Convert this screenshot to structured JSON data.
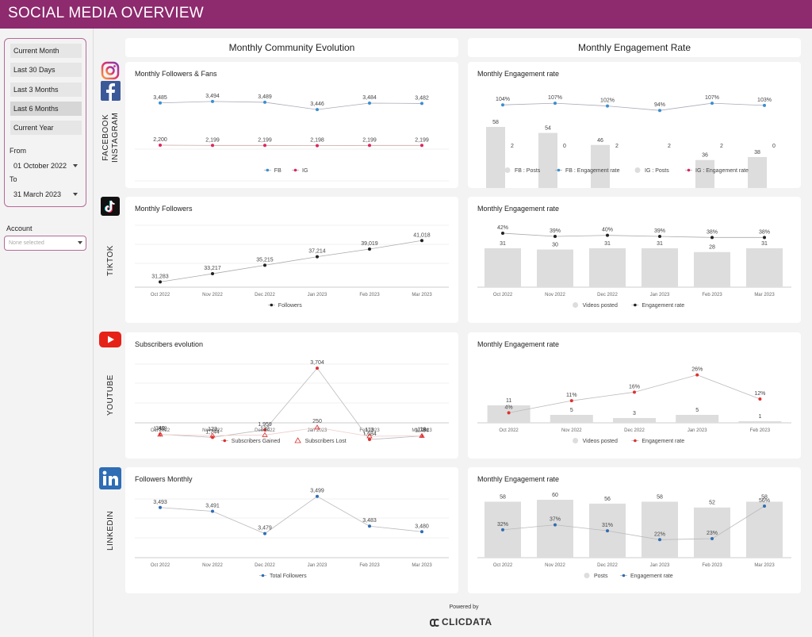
{
  "header": {
    "title": "SOCIAL MEDIA OVERVIEW"
  },
  "filters": {
    "periods": [
      {
        "label": "Current Month",
        "active": false
      },
      {
        "label": "Last 30 Days",
        "active": false
      },
      {
        "label": "Last 3 Months",
        "active": false
      },
      {
        "label": "Last 6 Months",
        "active": true
      },
      {
        "label": "Current Year",
        "active": false
      }
    ],
    "from_label": "From",
    "from_value": "01 October 2022",
    "to_label": "To",
    "to_value": "31 March 2023",
    "account_label": "Account",
    "account_placeholder": "None selected"
  },
  "columns": {
    "left": "Monthly Community Evolution",
    "right": "Monthly Engagement Rate"
  },
  "sections": {
    "fbig": "FACEBOOK\nINSTAGRAM",
    "tiktok": "TIKTOK",
    "youtube": "YOUTUBE",
    "linkedin": "LINKEDIN"
  },
  "colors": {
    "header": "#8e2a6e",
    "fb": "#3b8ed0",
    "ig": "#e0245e",
    "dark": "#222222",
    "red": "#e03030",
    "bar": "#dddddd",
    "li": "#2f6db5"
  },
  "footer": {
    "powered": "Powered by",
    "brand": "CLICDATA"
  },
  "chart_data": [
    {
      "id": "fbig-followers",
      "type": "line",
      "title": "Monthly Followers & Fans",
      "categories": [
        "Oct 2022",
        "Nov 2022",
        "Dec 2022",
        "Jan 2023",
        "Feb 2023",
        "Mar 2023"
      ],
      "series": [
        {
          "name": "FB",
          "values": [
            3485,
            3494,
            3489,
            3446,
            3484,
            3482
          ],
          "labels": [
            "3,485",
            "3,494",
            "3,489",
            "3,446",
            "3,484",
            "3,482"
          ]
        },
        {
          "name": "IG",
          "values": [
            2200,
            2199,
            2199,
            2198,
            2199,
            2199
          ],
          "labels": [
            "2,200",
            "2,199",
            "2,199",
            "2,198",
            "2,199",
            "2,199"
          ]
        }
      ]
    },
    {
      "id": "fbig-engagement",
      "type": "bar",
      "title": "Monthly Engagement rate",
      "categories": [
        "Oct 2022",
        "Nov 2022",
        "Dec 2022",
        "Jan 2023",
        "Feb 2023",
        "Mar 2023"
      ],
      "series": [
        {
          "name": "FB : Posts",
          "values": [
            58,
            54,
            46,
            6,
            36,
            38
          ]
        },
        {
          "name": "FB : Engagement rate",
          "values": [
            104,
            107,
            102,
            94,
            107,
            103
          ],
          "labels": [
            "104%",
            "107%",
            "102%",
            "94%",
            "107%",
            "103%"
          ]
        },
        {
          "name": "IG : Posts",
          "values": [
            2,
            0,
            2,
            2,
            2,
            0
          ]
        },
        {
          "name": "IG : Engagement rate",
          "values": [
            4,
            0,
            4,
            4,
            4,
            0
          ],
          "labels": [
            "4%",
            "0%",
            "4%",
            "4%",
            "4%",
            "0%"
          ]
        }
      ]
    },
    {
      "id": "tiktok-followers",
      "type": "line",
      "title": "Monthly Followers",
      "categories": [
        "Oct 2022",
        "Nov 2022",
        "Dec 2022",
        "Jan 2023",
        "Feb 2023",
        "Mar 2023"
      ],
      "series": [
        {
          "name": "Followers",
          "values": [
            31283,
            33217,
            35215,
            37214,
            39019,
            41018
          ],
          "labels": [
            "31,283",
            "33,217",
            "35,215",
            "37,214",
            "39,019",
            "41,018"
          ]
        }
      ]
    },
    {
      "id": "tiktok-engagement",
      "type": "bar",
      "title": "Monthly Engagement rate",
      "categories": [
        "Oct 2022",
        "Nov 2022",
        "Dec 2022",
        "Jan 2023",
        "Feb 2023",
        "Mar 2023"
      ],
      "series": [
        {
          "name": "Videos posted",
          "values": [
            31,
            30,
            31,
            31,
            28,
            31
          ]
        },
        {
          "name": "Engagement rate",
          "values": [
            42,
            39,
            40,
            39,
            38,
            38
          ],
          "labels": [
            "42%",
            "39%",
            "40%",
            "39%",
            "38%",
            "38%"
          ]
        }
      ]
    },
    {
      "id": "youtube-subscribers",
      "type": "line",
      "title": "Subscribers evolution",
      "categories": [
        "Oct 2022",
        "Nov 2022",
        "Dec 2022",
        "Jan 2023",
        "Feb 2023",
        "Mar 2023"
      ],
      "series": [
        {
          "name": "Subscribers Gained",
          "values": [
            1832,
            1744,
            1959,
            3704,
            1684,
            1784
          ],
          "labels": [
            "1,832",
            "1,744",
            "1,959",
            "3,704",
            "1,684",
            "1,784"
          ]
        },
        {
          "name": "Subscribers Lost",
          "values": [
            140,
            123,
            132,
            250,
            113,
            119
          ],
          "labels": [
            "140",
            "123",
            "132",
            "250",
            "113",
            "119"
          ]
        }
      ]
    },
    {
      "id": "youtube-engagement",
      "type": "bar",
      "title": "Monthly Engagement rate",
      "categories": [
        "Oct 2022",
        "Nov 2022",
        "Dec 2022",
        "Jan 2023",
        "Feb 2023"
      ],
      "series": [
        {
          "name": "Videos posted",
          "values": [
            11,
            5,
            3,
            5,
            1
          ]
        },
        {
          "name": "Engagement rate",
          "values": [
            4,
            11,
            16,
            26,
            12
          ],
          "labels": [
            "4%",
            "11%",
            "16%",
            "26%",
            "12%"
          ]
        }
      ]
    },
    {
      "id": "linkedin-followers",
      "type": "line",
      "title": "Followers Monthly",
      "categories": [
        "Oct 2022",
        "Nov 2022",
        "Dec 2022",
        "Jan 2023",
        "Feb 2023",
        "Mar 2023"
      ],
      "series": [
        {
          "name": "Total Followers",
          "values": [
            3493,
            3491,
            3479,
            3499,
            3483,
            3480
          ],
          "labels": [
            "3,493",
            "3,491",
            "3,479",
            "3,499",
            "3,483",
            "3,480"
          ]
        }
      ]
    },
    {
      "id": "linkedin-engagement",
      "type": "bar",
      "title": "Monthly Engagement rate",
      "categories": [
        "Oct 2022",
        "Nov 2022",
        "Dec 2022",
        "Jan 2023",
        "Feb 2023",
        "Mar 2023"
      ],
      "series": [
        {
          "name": "Posts",
          "values": [
            58,
            60,
            56,
            58,
            52,
            58
          ]
        },
        {
          "name": "Engagement rate",
          "values": [
            32,
            37,
            31,
            22,
            23,
            56
          ],
          "labels": [
            "32%",
            "37%",
            "31%",
            "22%",
            "23%",
            "56%"
          ]
        }
      ]
    }
  ]
}
